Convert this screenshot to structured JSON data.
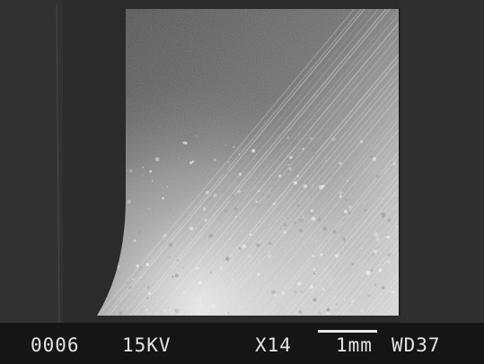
{
  "image": {
    "kind": "scanning electron micrograph",
    "palette": {
      "background": "#2a2a2a",
      "sample_highlight": "#e6e6e6",
      "sample_shadow": "#3a3a3a",
      "caption_bar": "#151515",
      "caption_text": "#e4e4e4"
    }
  },
  "caption": {
    "image_number": "0006",
    "accelerating_voltage": "15KV",
    "magnification": "X14",
    "scale_bar_label": "1mm",
    "working_distance": "WD37"
  }
}
